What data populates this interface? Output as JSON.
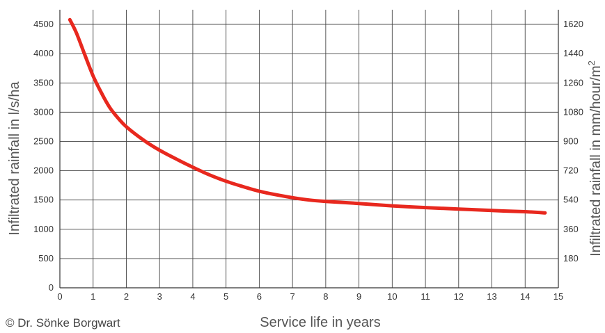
{
  "chart_data": {
    "type": "line",
    "title": "",
    "xlabel": "Service life in years",
    "ylabel": "Infiltrated rainfall in l/s/ha",
    "y2label_prefix": "Infiltrated rainfall in mm/hour/m",
    "y2label_sup": "2",
    "xlim": [
      0,
      15
    ],
    "ylim": [
      0,
      4750
    ],
    "y2lim": [
      0,
      1710
    ],
    "xticks": [
      "0",
      "1",
      "2",
      "3",
      "4",
      "5",
      "6",
      "7",
      "8",
      "9",
      "10",
      "11",
      "12",
      "13",
      "14",
      "15"
    ],
    "yticks": [
      "0",
      "500",
      "1000",
      "1500",
      "2000",
      "2500",
      "3000",
      "3500",
      "4000",
      "4500"
    ],
    "y2ticks": [
      "180",
      "360",
      "540",
      "720",
      "900",
      "1080",
      "1260",
      "1440",
      "1620"
    ],
    "grid": true,
    "series": [
      {
        "color": "#e8281e",
        "x": [
          0.3,
          0.5,
          0.75,
          1.0,
          1.25,
          1.5,
          1.75,
          2.0,
          2.5,
          3.0,
          3.5,
          4.0,
          4.5,
          5.0,
          5.5,
          6.0,
          6.5,
          7.0,
          7.5,
          8.0,
          9.0,
          10.0,
          11.0,
          12.0,
          13.0,
          14.0,
          14.6
        ],
        "y": [
          4580,
          4350,
          3980,
          3620,
          3330,
          3080,
          2900,
          2750,
          2530,
          2350,
          2200,
          2060,
          1930,
          1820,
          1730,
          1650,
          1590,
          1540,
          1500,
          1475,
          1440,
          1400,
          1370,
          1345,
          1320,
          1300,
          1280
        ]
      }
    ]
  },
  "credit": "© Dr. Sönke Borgwart"
}
